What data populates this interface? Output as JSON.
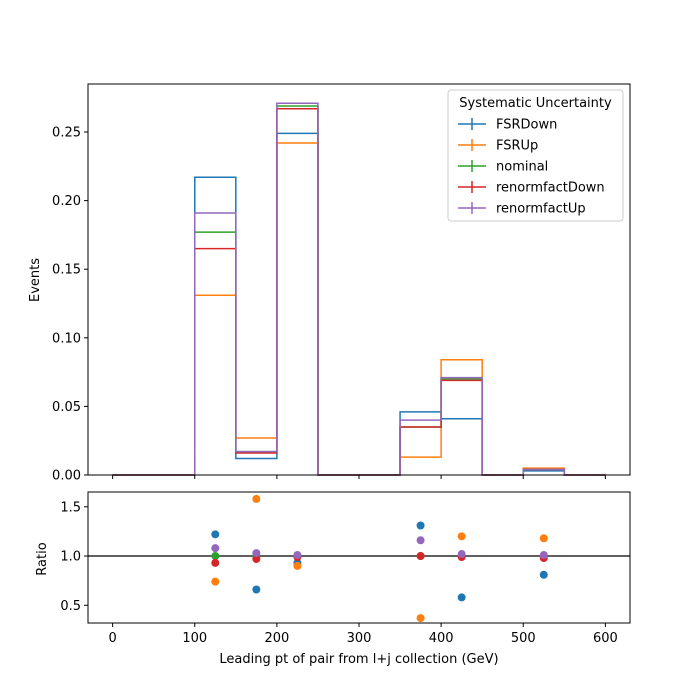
{
  "chart_data": [
    {
      "type": "step",
      "ylabel": "Events",
      "xlim": [
        -30,
        630
      ],
      "ylim": [
        0,
        0.285
      ],
      "bin_edges": [
        0,
        50,
        100,
        150,
        200,
        250,
        300,
        350,
        400,
        450,
        500,
        550,
        600
      ],
      "yticks": [
        0.0,
        0.05,
        0.1,
        0.15,
        0.2,
        0.25
      ],
      "ytick_labels": [
        "0.00",
        "0.05",
        "0.10",
        "0.15",
        "0.20",
        "0.25"
      ],
      "legend": {
        "title": "Systematic Uncertainty",
        "placement": "top-right"
      },
      "series": [
        {
          "name": "FSRDown",
          "color": "#1f77b4",
          "values": [
            0,
            0,
            0.217,
            0.012,
            0.249,
            0,
            0,
            0.046,
            0.041,
            0,
            0.003,
            0
          ]
        },
        {
          "name": "FSRUp",
          "color": "#ff7f0e",
          "values": [
            0,
            0,
            0.131,
            0.027,
            0.242,
            0,
            0,
            0.013,
            0.084,
            0,
            0.005,
            0
          ]
        },
        {
          "name": "nominal",
          "color": "#2ca02c",
          "values": [
            0,
            0,
            0.177,
            0.017,
            0.269,
            0,
            0,
            0.035,
            0.07,
            0,
            0.004,
            0
          ]
        },
        {
          "name": "renormfactDown",
          "color": "#d62728",
          "values": [
            0,
            0,
            0.165,
            0.016,
            0.267,
            0,
            0,
            0.035,
            0.069,
            0,
            0.004,
            0
          ]
        },
        {
          "name": "renormfactUp",
          "color": "#9467bd",
          "values": [
            0,
            0,
            0.191,
            0.017,
            0.271,
            0,
            0,
            0.04,
            0.071,
            0,
            0.004,
            0
          ]
        }
      ]
    },
    {
      "type": "scatter",
      "xlabel": "Leading pt of pair from l+j collection (GeV)",
      "ylabel": "Ratio",
      "xlim": [
        -30,
        630
      ],
      "ylim": [
        0.32,
        1.65
      ],
      "xticks": [
        0,
        100,
        200,
        300,
        400,
        500,
        600
      ],
      "xtick_labels": [
        "0",
        "100",
        "200",
        "300",
        "400",
        "500",
        "600"
      ],
      "yticks": [
        0.5,
        1.0,
        1.5
      ],
      "ytick_labels": [
        "0.5",
        "1.0",
        "1.5"
      ],
      "reference_line": 1.0,
      "x": [
        125,
        175,
        225,
        375,
        425,
        525
      ],
      "series": [
        {
          "name": "FSRDown",
          "color": "#1f77b4",
          "values": [
            1.22,
            0.66,
            0.93,
            1.31,
            0.58,
            0.81
          ]
        },
        {
          "name": "FSRUp",
          "color": "#ff7f0e",
          "values": [
            0.74,
            1.58,
            0.9,
            0.37,
            1.2,
            1.18
          ]
        },
        {
          "name": "nominal",
          "color": "#2ca02c",
          "values": [
            1.0,
            1.0,
            1.0,
            1.0,
            1.0,
            1.0
          ]
        },
        {
          "name": "renormfactDown",
          "color": "#d62728",
          "values": [
            0.93,
            0.97,
            0.99,
            1.0,
            0.99,
            0.98
          ]
        },
        {
          "name": "renormfactUp",
          "color": "#9467bd",
          "values": [
            1.08,
            1.03,
            1.01,
            1.16,
            1.02,
            1.01
          ]
        }
      ]
    }
  ]
}
